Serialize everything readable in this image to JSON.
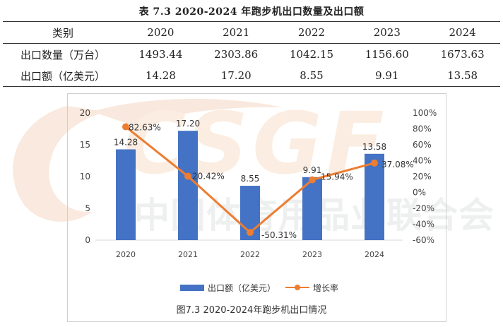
{
  "table": {
    "title": "表 7.3 2020-2024 年跑步机出口数量及出口额",
    "headers": [
      "类别",
      "2020",
      "2021",
      "2022",
      "2023",
      "2024"
    ],
    "rows": [
      [
        "出口数量（万台）",
        "1493.44",
        "2303.86",
        "1042.15",
        "1156.60",
        "1673.63"
      ],
      [
        "出口额（亿美元）",
        "14.28",
        "17.20",
        "8.55",
        "9.91",
        "13.58"
      ]
    ]
  },
  "watermark": {
    "brand_text": "中国体育用品业联合会",
    "logo_text": "CSGF"
  },
  "chart_data": {
    "type": "bar",
    "categories": [
      "2020",
      "2021",
      "2022",
      "2023",
      "2024"
    ],
    "series": [
      {
        "name": "出口额（亿美元）",
        "type": "bar",
        "axis": "left",
        "values": [
          14.28,
          17.2,
          8.55,
          9.91,
          13.58
        ],
        "labels": [
          "14.28",
          "17.20",
          "8.55",
          "9.91",
          "13.58"
        ],
        "color": "#4472C4"
      },
      {
        "name": "增长率",
        "type": "line",
        "axis": "right",
        "values": [
          82.63,
          20.42,
          -50.31,
          15.94,
          37.08
        ],
        "labels": [
          "82.63%",
          "20.42%",
          "-50.31%",
          "15.94%",
          "37.08%"
        ],
        "color": "#ED7D31"
      }
    ],
    "y_left": {
      "ylim": [
        0,
        20
      ],
      "ticks": [
        "0",
        "5",
        "10",
        "15",
        "20"
      ]
    },
    "y_right": {
      "ylim": [
        -60,
        100
      ],
      "ticks": [
        "-60%",
        "-40%",
        "-20%",
        "0%",
        "20%",
        "40%",
        "60%",
        "80%",
        "100%"
      ]
    },
    "grid": false,
    "legend_position": "bottom",
    "caption": "图7.3 2020-2024年跑步机出口情况"
  }
}
